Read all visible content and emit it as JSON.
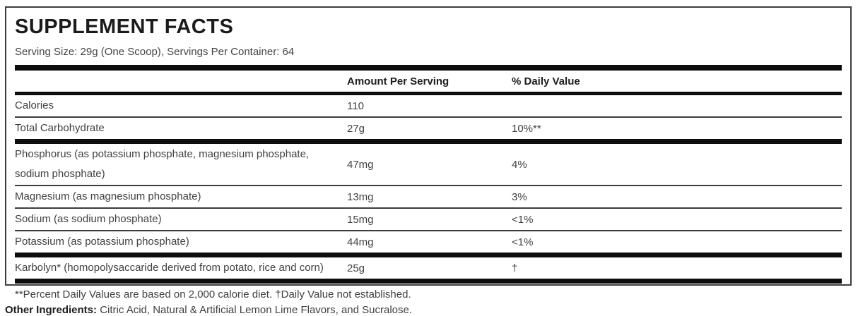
{
  "label": {
    "title": "SUPPLEMENT FACTS",
    "serving_info": "Serving Size: 29g (One Scoop), Servings Per Container: 64",
    "columns": {
      "amount": "Amount Per Serving",
      "daily_value": "% Daily Value"
    },
    "rows": [
      {
        "name": "Calories",
        "amount": "110",
        "dv": "",
        "divider_after": "thin"
      },
      {
        "name": "Total Carbohydrate",
        "amount": "27g",
        "dv": "10%**",
        "divider_after": "thick"
      },
      {
        "name": "Phosphorus (as potassium phosphate, magnesium phosphate, sodium phosphate)",
        "amount": "47mg",
        "dv": "4%",
        "divider_after": "thin"
      },
      {
        "name": "Magnesium (as magnesium phosphate)",
        "amount": "13mg",
        "dv": "3%",
        "divider_after": "thin"
      },
      {
        "name": "Sodium (as sodium phosphate)",
        "amount": "15mg",
        "dv": "<1%",
        "divider_after": "thin"
      },
      {
        "name": "Potassium (as potassium phosphate)",
        "amount": "44mg",
        "dv": "<1%",
        "divider_after": "thick"
      },
      {
        "name": "Karbolyn* (homopolysaccaride derived from potato, rice and corn)",
        "amount": "25g",
        "dv": "†",
        "divider_after": "thick"
      }
    ],
    "footnote": "**Percent Daily Values are based on 2,000 calorie diet. †Daily Value not established.",
    "other_ingredients_label": "Other Ingredients:",
    "other_ingredients_text": "Citric Acid, Natural & Artificial Lemon Lime Flavors, and Sucralose.",
    "colors": {
      "bar": "#0d0d0d",
      "body_text": "#414141",
      "heading_text": "#1b1b1b",
      "panel_border": "#3d3d3d",
      "background": "#ffffff"
    }
  }
}
